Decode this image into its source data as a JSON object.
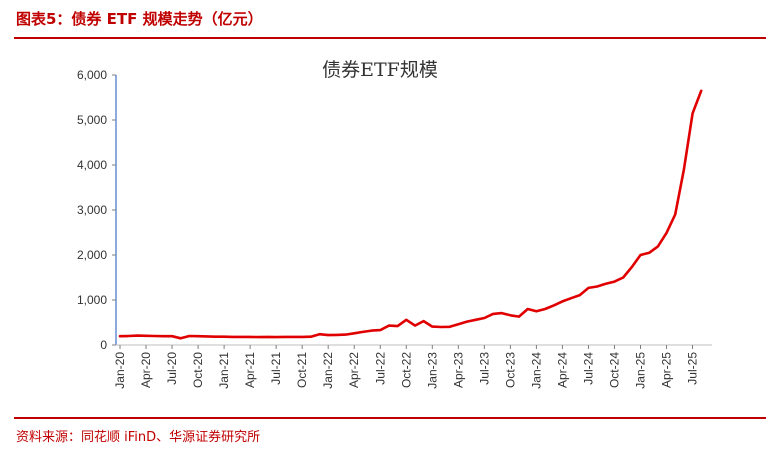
{
  "header": {
    "figure_title": "图表5：债券 ETF 规模走势（亿元）"
  },
  "footer": {
    "source": "资料来源：同花顺 iFinD、华源证券研究所"
  },
  "colors": {
    "accent": "#c00000",
    "line": "#e00000",
    "axis": "#4472c4"
  },
  "chart_data": {
    "type": "line",
    "title": "债券ETF规模",
    "xlabel": "",
    "ylabel": "",
    "ylim": [
      0,
      6000
    ],
    "yticks": [
      0,
      1000,
      2000,
      3000,
      4000,
      5000,
      6000
    ],
    "ytick_labels": [
      "0",
      "1,000",
      "2,000",
      "3,000",
      "4,000",
      "5,000",
      "6,000"
    ],
    "xtick_labels": [
      "Jan-20",
      "Apr-20",
      "Jul-20",
      "Oct-20",
      "Jan-21",
      "Apr-21",
      "Jul-21",
      "Oct-21",
      "Jan-22",
      "Apr-22",
      "Jul-22",
      "Oct-22",
      "Jan-23",
      "Apr-23",
      "Jul-23",
      "Oct-23",
      "Jan-24",
      "Apr-24",
      "Jul-24",
      "Oct-24",
      "Jan-25",
      "Apr-25",
      "Jul-25"
    ],
    "grid": false,
    "legend": false,
    "series": [
      {
        "x": [
          "Jan-20",
          "Feb-20",
          "Mar-20",
          "Apr-20",
          "May-20",
          "Jun-20",
          "Jul-20",
          "Aug-20",
          "Sep-20",
          "Oct-20",
          "Nov-20",
          "Dec-20",
          "Jan-21",
          "Feb-21",
          "Mar-21",
          "Apr-21",
          "May-21",
          "Jun-21",
          "Jul-21",
          "Aug-21",
          "Sep-21",
          "Oct-21",
          "Nov-21",
          "Dec-21",
          "Jan-22",
          "Feb-22",
          "Mar-22",
          "Apr-22",
          "May-22",
          "Jun-22",
          "Jul-22",
          "Aug-22",
          "Sep-22",
          "Oct-22",
          "Nov-22",
          "Dec-22",
          "Jan-23",
          "Feb-23",
          "Mar-23",
          "Apr-23",
          "May-23",
          "Jun-23",
          "Jul-23",
          "Aug-23",
          "Sep-23",
          "Oct-23",
          "Nov-23",
          "Dec-23",
          "Jan-24",
          "Feb-24",
          "Mar-24",
          "Apr-24",
          "May-24",
          "Jun-24",
          "Jul-24",
          "Aug-24",
          "Sep-24",
          "Oct-24",
          "Nov-24",
          "Dec-24",
          "Jan-25",
          "Feb-25",
          "Mar-25",
          "Apr-25",
          "May-25",
          "Jun-25",
          "Jul-25",
          "Aug-25"
        ],
        "values": [
          195,
          200,
          210,
          205,
          200,
          195,
          195,
          150,
          200,
          195,
          190,
          185,
          185,
          180,
          180,
          180,
          175,
          180,
          175,
          180,
          180,
          180,
          185,
          240,
          220,
          225,
          230,
          260,
          290,
          320,
          330,
          430,
          420,
          560,
          430,
          530,
          410,
          400,
          405,
          460,
          520,
          560,
          600,
          690,
          710,
          660,
          630,
          800,
          750,
          800,
          880,
          970,
          1040,
          1110,
          1270,
          1300,
          1360,
          1410,
          1500,
          1730,
          2000,
          2050,
          2190,
          2490,
          2900,
          3900,
          5150,
          5650
        ]
      }
    ]
  }
}
